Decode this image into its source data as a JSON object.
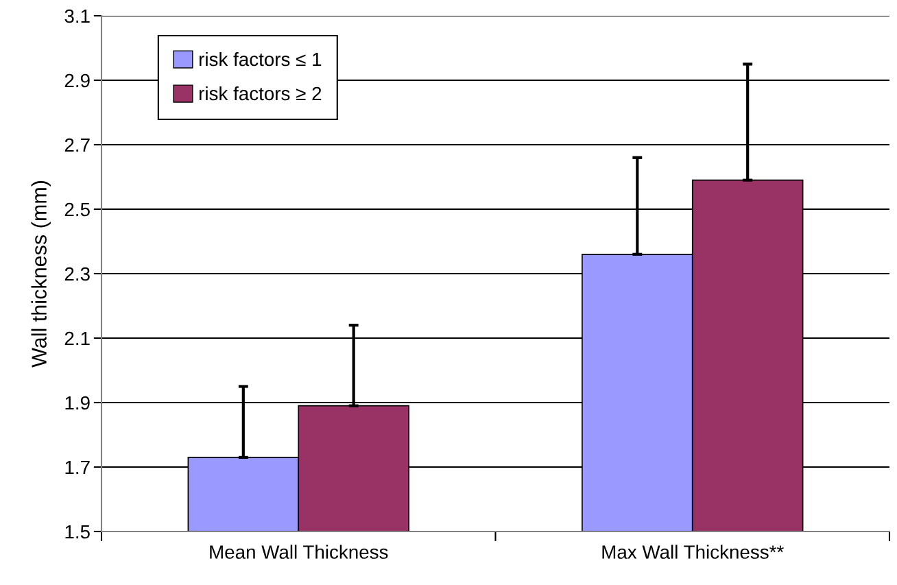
{
  "chart_data": {
    "type": "bar",
    "ylabel": "Wall thickness (mm)",
    "categories": [
      "Mean Wall Thickness",
      "Max Wall Thickness**"
    ],
    "series": [
      {
        "name": "risk factors ≤ 1",
        "color": "#9999ff",
        "values": [
          1.73,
          2.36
        ],
        "errors": [
          [
            1.73,
            1.95
          ],
          [
            2.36,
            2.66
          ]
        ]
      },
      {
        "name": "risk factors ≥ 2",
        "color": "#993366",
        "values": [
          1.89,
          2.59
        ],
        "errors": [
          [
            1.89,
            2.14
          ],
          [
            2.59,
            2.95
          ]
        ]
      }
    ],
    "ylim": [
      1.5,
      3.1
    ],
    "yticks": [
      {
        "value": 1.5,
        "label": "1.5"
      },
      {
        "value": 1.7,
        "label": "1.7"
      },
      {
        "value": 1.9,
        "label": "1.9"
      },
      {
        "value": 2.1,
        "label": "2.1"
      },
      {
        "value": 2.3,
        "label": "2.3"
      },
      {
        "value": 2.5,
        "label": "2.5"
      },
      {
        "value": 2.7,
        "label": "2.7"
      },
      {
        "value": 2.9,
        "label": "2.9"
      },
      {
        "value": 3.1,
        "label": "3.1"
      }
    ],
    "grid": "y",
    "legend": "top left"
  }
}
